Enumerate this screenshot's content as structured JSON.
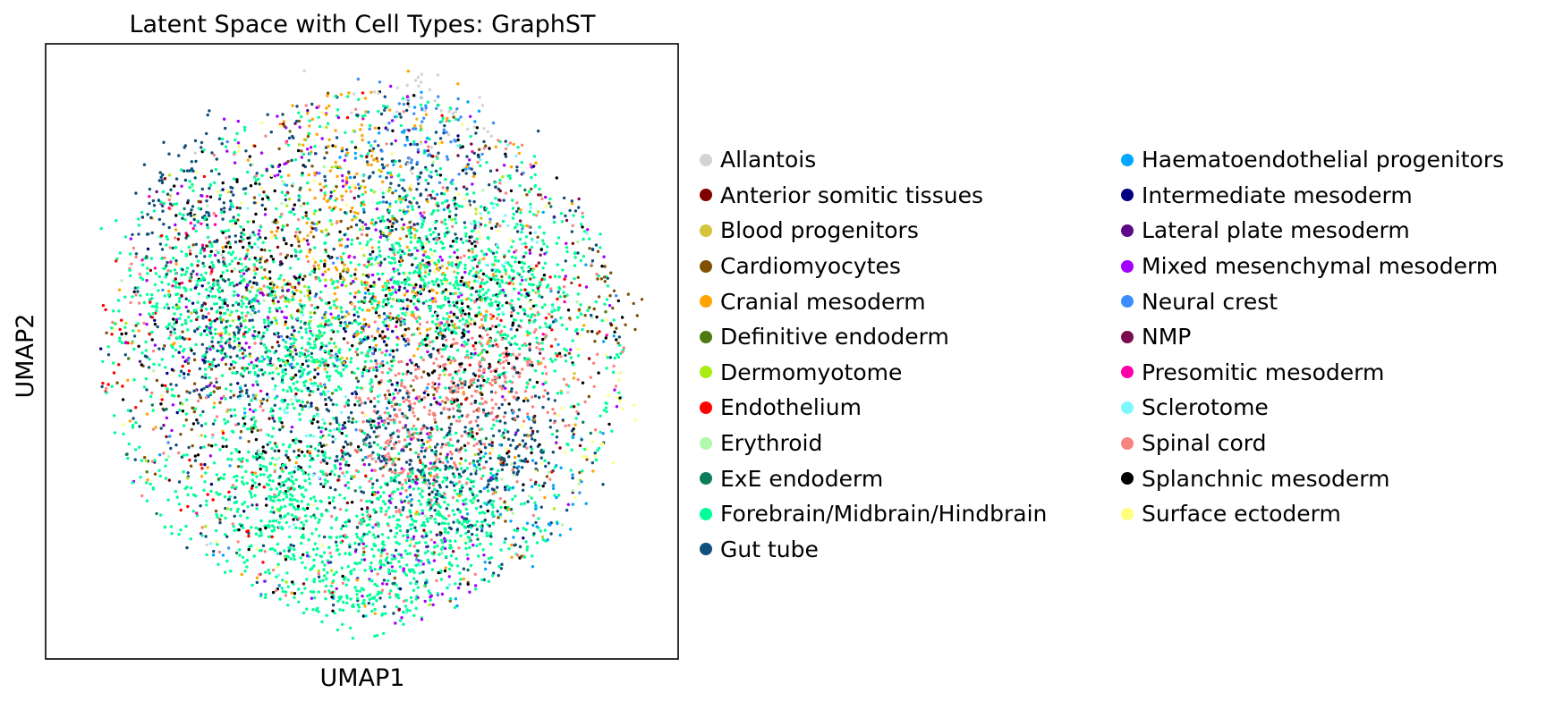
{
  "chart_data": {
    "type": "scatter",
    "title": "Latent Space with Cell Types: GraphST",
    "xlabel": "UMAP1",
    "ylabel": "UMAP2",
    "xticks": [],
    "yticks": [],
    "xlim": [
      -1.05,
      1.05
    ],
    "ylim": [
      -1.05,
      1.05
    ],
    "grid": false,
    "legend_position": "right",
    "series": [
      {
        "name": "Allantois",
        "color": "#d3d3d3",
        "weight": 0.6,
        "clusters": [
          [
            0.25,
            0.95
          ]
        ]
      },
      {
        "name": "Anterior somitic tissues",
        "color": "#800000",
        "weight": 0.8,
        "clusters": [
          [
            -0.45,
            0.3
          ],
          [
            0.6,
            -0.3
          ]
        ]
      },
      {
        "name": "Blood progenitors",
        "color": "#d4c43a",
        "weight": 0.6,
        "clusters": [
          [
            -0.2,
            0.25
          ],
          [
            0.4,
            0.3
          ]
        ]
      },
      {
        "name": "Cardiomyocytes",
        "color": "#7f5106",
        "weight": 2.5,
        "clusters": [
          [
            -0.55,
            -0.15
          ],
          [
            -0.2,
            0.45
          ],
          [
            0.3,
            -0.2
          ],
          [
            0.8,
            0.2
          ]
        ]
      },
      {
        "name": "Cranial mesoderm",
        "color": "#ffa500",
        "weight": 3.5,
        "clusters": [
          [
            0.0,
            0.7
          ],
          [
            -0.1,
            0.3
          ],
          [
            0.2,
            0.15
          ]
        ]
      },
      {
        "name": "Definitive endoderm",
        "color": "#4f7a12",
        "weight": 0.4,
        "clusters": [
          [
            -0.1,
            0.0
          ]
        ]
      },
      {
        "name": "Dermomyotome",
        "color": "#a8ec13",
        "weight": 1.2,
        "clusters": [
          [
            -0.25,
            0.15
          ],
          [
            0.0,
            0.45
          ]
        ]
      },
      {
        "name": "Endothelium",
        "color": "#ff0000",
        "weight": 1.0,
        "clusters": [
          [
            -0.5,
            -0.5
          ],
          [
            0.55,
            0.05
          ],
          [
            -0.8,
            0.0
          ]
        ]
      },
      {
        "name": "Erythroid",
        "color": "#b0f8ac",
        "weight": 0.6,
        "clusters": [
          [
            -0.3,
            0.5
          ],
          [
            0.5,
            -0.5
          ]
        ]
      },
      {
        "name": "ExE endoderm",
        "color": "#0d7c5d",
        "weight": 1.0,
        "clusters": [
          [
            0.1,
            -0.4
          ],
          [
            -0.45,
            0.1
          ]
        ]
      },
      {
        "name": "Forebrain/Midbrain/Hindbrain",
        "color": "#00ff99",
        "weight": 30,
        "clusters": [
          [
            -0.2,
            0.0
          ],
          [
            0.2,
            0.3
          ],
          [
            -0.3,
            -0.5
          ],
          [
            0.5,
            0.2
          ],
          [
            -0.55,
            0.2
          ],
          [
            0.0,
            -0.75
          ],
          [
            0.3,
            -0.55
          ]
        ]
      },
      {
        "name": "Gut tube",
        "color": "#0f4f7b",
        "weight": 12,
        "clusters": [
          [
            0.3,
            -0.45
          ],
          [
            -0.45,
            0.0
          ],
          [
            0.0,
            -0.3
          ],
          [
            0.2,
            0.55
          ],
          [
            -0.6,
            0.55
          ],
          [
            0.5,
            -0.3
          ]
        ]
      },
      {
        "name": "Haematoendothelial progenitors",
        "color": "#00a6ff",
        "weight": 1.2,
        "clusters": [
          [
            0.15,
            0.7
          ],
          [
            0.55,
            -0.55
          ]
        ]
      },
      {
        "name": "Intermediate mesoderm",
        "color": "#000080",
        "weight": 1.0,
        "clusters": [
          [
            -0.55,
            0.05
          ],
          [
            0.0,
            0.05
          ]
        ]
      },
      {
        "name": "Lateral plate mesoderm",
        "color": "#5c0a86",
        "weight": 0.6,
        "clusters": [
          [
            -0.35,
            0.1
          ],
          [
            0.1,
            0.2
          ]
        ]
      },
      {
        "name": "Mixed mesenchymal mesoderm",
        "color": "#a300ff",
        "weight": 3.0,
        "clusters": [
          [
            -0.15,
            0.7
          ],
          [
            -0.5,
            0.1
          ],
          [
            0.1,
            -0.4
          ],
          [
            0.15,
            0.25
          ],
          [
            0.2,
            -0.75
          ]
        ]
      },
      {
        "name": "Neural crest",
        "color": "#3b8efb",
        "weight": 1.5,
        "clusters": [
          [
            0.2,
            0.75
          ],
          [
            -0.1,
            0.05
          ]
        ]
      },
      {
        "name": "NMP",
        "color": "#7a0b4f",
        "weight": 0.4,
        "clusters": [
          [
            0.4,
            0.5
          ]
        ]
      },
      {
        "name": "Presomitic mesoderm",
        "color": "#ff00a8",
        "weight": 0.4,
        "clusters": [
          [
            -0.6,
            0.35
          ]
        ]
      },
      {
        "name": "Sclerotome",
        "color": "#7ff7ff",
        "weight": 1.0,
        "clusters": [
          [
            -0.2,
            -0.2
          ],
          [
            0.4,
            0.4
          ]
        ]
      },
      {
        "name": "Spinal cord",
        "color": "#f9847f",
        "weight": 7,
        "clusters": [
          [
            0.3,
            -0.15
          ],
          [
            0.5,
            -0.05
          ],
          [
            0.15,
            -0.3
          ]
        ]
      },
      {
        "name": "Splanchnic mesoderm",
        "color": "#000000",
        "weight": 4.5,
        "clusters": [
          [
            0.35,
            0.15
          ],
          [
            -0.4,
            0.4
          ],
          [
            0.45,
            0.05
          ],
          [
            -0.2,
            -0.35
          ],
          [
            0.05,
            0.1
          ]
        ]
      },
      {
        "name": "Surface ectoderm",
        "color": "#ffff7f",
        "weight": 1.2,
        "clusters": [
          [
            -0.35,
            0.6
          ],
          [
            0.8,
            -0.25
          ],
          [
            0.3,
            0.35
          ]
        ]
      }
    ]
  },
  "legend": {
    "column1": [
      {
        "label": "Allantois",
        "color": "#d3d3d3"
      },
      {
        "label": "Anterior somitic tissues",
        "color": "#800000"
      },
      {
        "label": "Blood progenitors",
        "color": "#d4c43a"
      },
      {
        "label": "Cardiomyocytes",
        "color": "#7f5106"
      },
      {
        "label": "Cranial mesoderm",
        "color": "#ffa500"
      },
      {
        "label": "Definitive endoderm",
        "color": "#4f7a12"
      },
      {
        "label": "Dermomyotome",
        "color": "#a8ec13"
      },
      {
        "label": "Endothelium",
        "color": "#ff0000"
      },
      {
        "label": "Erythroid",
        "color": "#b0f8ac"
      },
      {
        "label": "ExE endoderm",
        "color": "#0d7c5d"
      },
      {
        "label": "Forebrain/Midbrain/Hindbrain",
        "color": "#00ff99"
      },
      {
        "label": "Gut tube",
        "color": "#0f4f7b"
      }
    ],
    "column2": [
      {
        "label": "Haematoendothelial progenitors",
        "color": "#00a6ff"
      },
      {
        "label": "Intermediate mesoderm",
        "color": "#000080"
      },
      {
        "label": "Lateral plate mesoderm",
        "color": "#5c0a86"
      },
      {
        "label": "Mixed mesenchymal mesoderm",
        "color": "#a300ff"
      },
      {
        "label": "Neural crest",
        "color": "#3b8efb"
      },
      {
        "label": "NMP",
        "color": "#7a0b4f"
      },
      {
        "label": "Presomitic mesoderm",
        "color": "#ff00a8"
      },
      {
        "label": "Sclerotome",
        "color": "#7ff7ff"
      },
      {
        "label": "Spinal cord",
        "color": "#f9847f"
      },
      {
        "label": "Splanchnic mesoderm",
        "color": "#000000"
      },
      {
        "label": "Surface ectoderm",
        "color": "#ffff7f"
      }
    ]
  }
}
